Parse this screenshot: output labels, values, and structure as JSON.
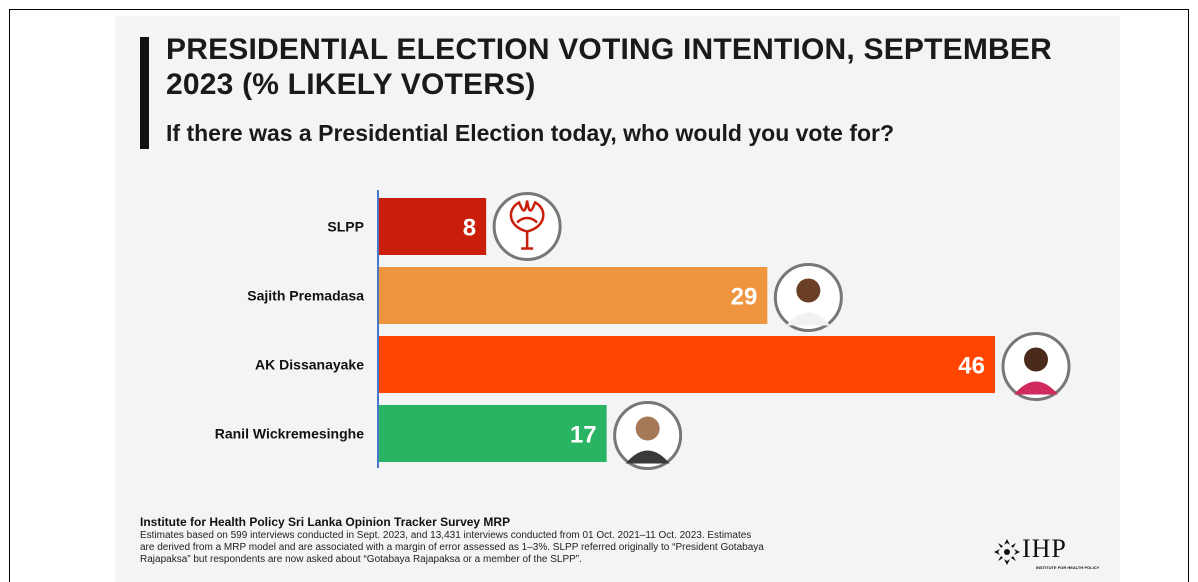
{
  "title": "PRESIDENTIAL ELECTION VOTING INTENTION, SEPTEMBER 2023 (% LIKELY VOTERS)",
  "subtitle": "If there was a Presidential Election today, who would you vote for?",
  "chart_data": {
    "type": "bar",
    "orientation": "horizontal",
    "categories": [
      "SLPP",
      "Sajith Premadasa",
      "AK Dissanayake",
      "Ranil Wickremesinghe"
    ],
    "values": [
      8,
      29,
      46,
      17
    ],
    "colors": [
      "#c91f0a",
      "#f0953f",
      "#ff4500",
      "#28b463"
    ],
    "xlim": [
      0,
      46
    ],
    "grid": false,
    "legend": "none"
  },
  "footer": {
    "source_title": "Institute for Health Policy Sri Lanka Opinion Tracker Survey MRP",
    "line1": "Estimates based on 599 interviews conducted in Sept. 2023, and 13,431 interviews conducted from 01 Oct. 2021–11 Oct. 2023. Estimates",
    "line2": "are derived from a MRP model and are associated with a margin of error assessed as 1–3%. SLPP referred originally to “President Gotabaya",
    "line3": "Rajapaksa” but respondents are now asked about “Gotabaya Rajapaksa or a member of the SLPP”."
  },
  "logo": {
    "text": "IHP",
    "subtext": "INSTITUTE FOR HEALTH POLICY",
    "icon": "ihp-logo-icon"
  },
  "markers": [
    "lotus-bud-icon",
    "avatar",
    "avatar",
    "avatar"
  ]
}
